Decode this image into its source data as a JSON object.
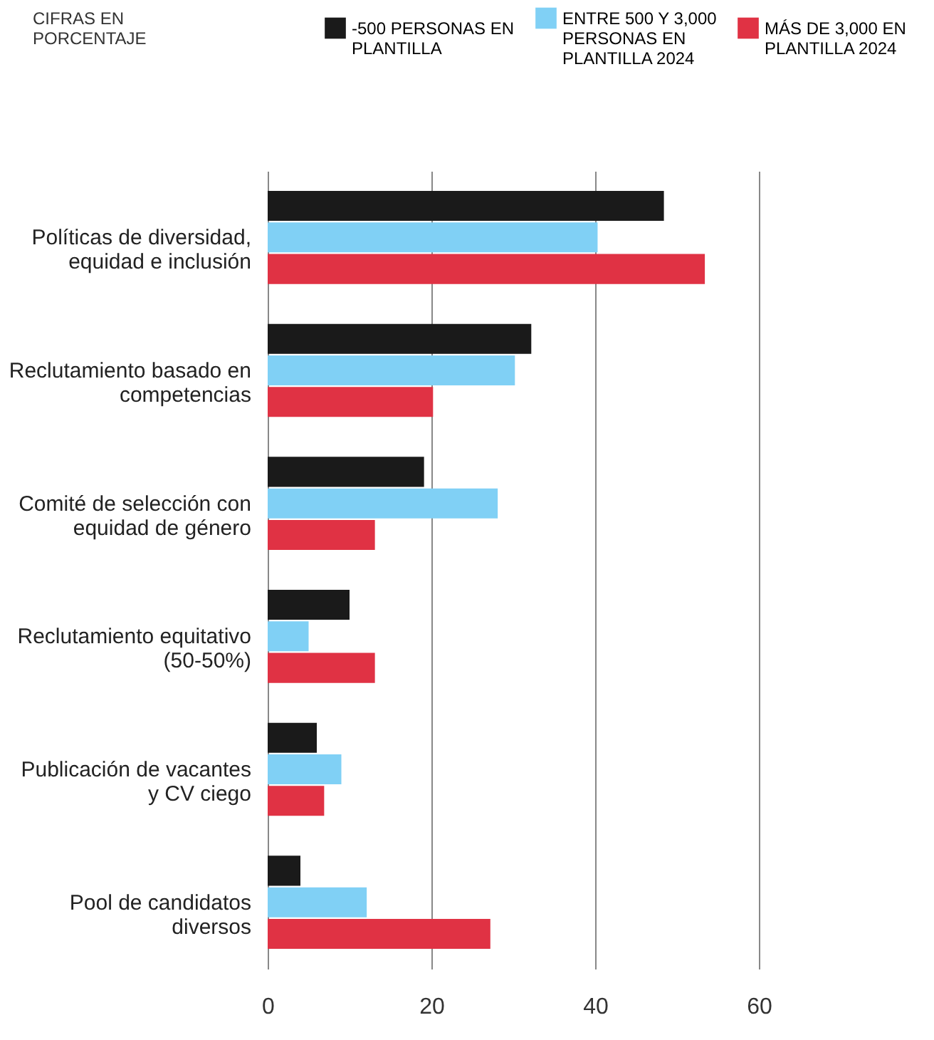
{
  "chart_data": {
    "type": "bar",
    "orientation": "horizontal",
    "categories": [
      "Políticas de diversidad, equidad e inclusión",
      "Reclutamiento basado en competencias",
      "Comité de selección con equidad de género",
      "Reclutamiento equitativo (50-50%)",
      "Publicación de vacantes y CV ciego",
      "Pool de candidatos diversos"
    ],
    "series": [
      {
        "name": "-500 PERSONAS EN PLANTILLA",
        "color": "#1a1a1a",
        "values": [
          48.4,
          32.2,
          19.1,
          10,
          6,
          4
        ]
      },
      {
        "name": "ENTRE 500 Y 3,000 PERSONAS EN PLANTILLA 2024",
        "color": "#80d0f5",
        "values": [
          40.3,
          30.2,
          28.1,
          5,
          9,
          12.1
        ]
      },
      {
        "name": "MÁS DE 3,000 EN PLANTILLA 2024",
        "color": "#e03244",
        "values": [
          53.4,
          20.2,
          13.1,
          13.1,
          6.9,
          27.2
        ]
      }
    ],
    "xlim": [
      0,
      60
    ],
    "xticks": [
      0,
      20,
      40,
      60
    ],
    "grid": "x",
    "legend": "top",
    "annotations": [
      "CIFRAS EN PORCENTAJE"
    ]
  }
}
